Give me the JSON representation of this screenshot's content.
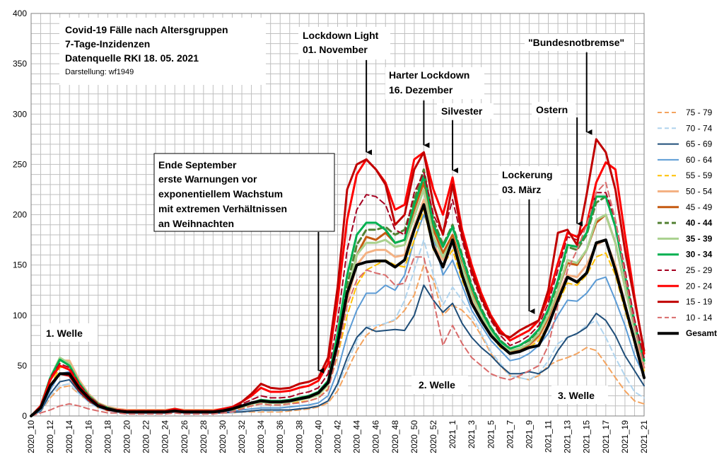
{
  "chart_data": {
    "type": "line",
    "title_lines": [
      "Covid-19  Fälle nach Altersgruppen",
      "7-Tage-Inzidenzen",
      "Datenquelle RKI 18. 05. 2021"
    ],
    "subtitle": "Darstellung:  wf1949",
    "ylim": [
      0,
      400
    ],
    "yticks": [
      0,
      50,
      100,
      150,
      200,
      250,
      300,
      350,
      400
    ],
    "weeks": [
      "2020_10",
      "2020_11",
      "2020_12",
      "2020_13",
      "2020_14",
      "2020_15",
      "2020_16",
      "2020_17",
      "2020_18",
      "2020_19",
      "2020_20",
      "2020_21",
      "2020_22",
      "2020_23",
      "2020_24",
      "2020_25",
      "2020_26",
      "2020_27",
      "2020_28",
      "2020_29",
      "2020_30",
      "2020_31",
      "2020_32",
      "2020_33",
      "2020_34",
      "2020_35",
      "2020_36",
      "2020_37",
      "2020_38",
      "2020_39",
      "2020_40",
      "2020_41",
      "2020_42",
      "2020_43",
      "2020_44",
      "2020_45",
      "2020_46",
      "2020_47",
      "2020_48",
      "2020_49",
      "2020_50",
      "2020_51",
      "2020_52",
      "2020_53",
      "2021_1",
      "2021_2",
      "2021_3",
      "2021_4",
      "2021_5",
      "2021_6",
      "2021_7",
      "2021_8",
      "2021_9",
      "2021_10",
      "2021_11",
      "2021_12",
      "2021_13",
      "2021_14",
      "2021_15",
      "2021_16",
      "2021_17",
      "2021_18",
      "2021_19",
      "2021_20",
      "2021_21"
    ],
    "xtick_labels": [
      "2020_10",
      "2020_12",
      "2020_14",
      "2020_16",
      "2020_18",
      "2020_20",
      "2020_22",
      "2020_24",
      "2020_26",
      "2020_28",
      "2020_30",
      "2020_32",
      "2020_34",
      "2020_36",
      "2020_38",
      "2020_40",
      "2020_42",
      "2020_44",
      "2020_46",
      "2020_48",
      "2020_50",
      "2020_52",
      "2021_1",
      "2021_3",
      "2021_5",
      "2021_7",
      "2021_9",
      "2021_11",
      "2021_13",
      "2021_15",
      "2021_17",
      "2021_19",
      "2021_21"
    ],
    "series": [
      {
        "name": "75 - 79",
        "color": "#f4a460",
        "dash": "dash",
        "width": 2,
        "values": [
          0,
          4,
          18,
          28,
          30,
          22,
          14,
          8,
          5,
          4,
          3,
          3,
          3,
          3,
          3,
          4,
          3,
          3,
          3,
          3,
          3,
          3,
          4,
          4,
          4,
          4,
          4,
          5,
          6,
          7,
          9,
          13,
          25,
          45,
          65,
          80,
          88,
          92,
          95,
          105,
          120,
          150,
          135,
          100,
          110,
          105,
          95,
          80,
          62,
          50,
          40,
          38,
          36,
          40,
          50,
          55,
          58,
          62,
          68,
          65,
          52,
          38,
          25,
          15,
          12
        ]
      },
      {
        "name": "70 - 74",
        "color": "#b0d4ee",
        "dash": "dash",
        "width": 2,
        "values": [
          0,
          4,
          20,
          30,
          32,
          22,
          14,
          8,
          5,
          4,
          3,
          3,
          3,
          3,
          3,
          4,
          3,
          3,
          3,
          3,
          3,
          3,
          4,
          5,
          5,
          5,
          5,
          6,
          7,
          8,
          10,
          15,
          30,
          52,
          75,
          88,
          90,
          92,
          96,
          115,
          145,
          175,
          140,
          110,
          128,
          115,
          100,
          82,
          64,
          52,
          40,
          38,
          36,
          42,
          55,
          72,
          78,
          82,
          90,
          95,
          78,
          58,
          40,
          24,
          18
        ]
      },
      {
        "name": "65 - 69",
        "color": "#1f4e79",
        "dash": "solid",
        "width": 2,
        "values": [
          0,
          5,
          22,
          34,
          36,
          24,
          15,
          9,
          6,
          4,
          3,
          3,
          3,
          3,
          3,
          4,
          3,
          3,
          3,
          3,
          3,
          4,
          4,
          5,
          6,
          6,
          6,
          6,
          7,
          8,
          10,
          15,
          32,
          58,
          78,
          88,
          84,
          85,
          86,
          85,
          100,
          130,
          115,
          103,
          112,
          92,
          78,
          68,
          60,
          50,
          42,
          42,
          44,
          42,
          48,
          65,
          78,
          82,
          88,
          102,
          95,
          80,
          60,
          45,
          30
        ]
      },
      {
        "name": "60 - 64",
        "color": "#5b9bd5",
        "dash": "solid",
        "width": 2,
        "values": [
          0,
          6,
          26,
          42,
          44,
          30,
          18,
          10,
          7,
          5,
          4,
          4,
          4,
          4,
          4,
          5,
          4,
          4,
          4,
          4,
          5,
          5,
          6,
          7,
          8,
          8,
          8,
          9,
          10,
          11,
          13,
          20,
          45,
          80,
          105,
          122,
          122,
          130,
          125,
          140,
          175,
          200,
          178,
          140,
          155,
          130,
          105,
          90,
          75,
          65,
          55,
          57,
          62,
          70,
          82,
          100,
          115,
          114,
          122,
          135,
          138,
          115,
          90,
          60,
          40
        ]
      },
      {
        "name": "55 - 59",
        "color": "#ffc000",
        "dash": "dash",
        "width": 2,
        "values": [
          0,
          7,
          30,
          48,
          50,
          33,
          20,
          11,
          8,
          6,
          5,
          5,
          5,
          5,
          5,
          6,
          5,
          5,
          5,
          5,
          6,
          6,
          8,
          10,
          12,
          11,
          11,
          12,
          14,
          15,
          18,
          27,
          60,
          100,
          130,
          145,
          150,
          155,
          150,
          148,
          175,
          205,
          165,
          150,
          165,
          135,
          112,
          95,
          80,
          68,
          62,
          64,
          68,
          75,
          90,
          112,
          132,
          130,
          140,
          158,
          162,
          140,
          105,
          72,
          45
        ]
      },
      {
        "name": "50 - 54",
        "color": "#f4b183",
        "dash": "solid",
        "width": 3,
        "values": [
          0,
          9,
          35,
          55,
          55,
          36,
          22,
          13,
          9,
          7,
          6,
          6,
          6,
          6,
          6,
          7,
          6,
          6,
          6,
          6,
          7,
          8,
          10,
          13,
          15,
          14,
          14,
          15,
          17,
          18,
          22,
          32,
          70,
          115,
          150,
          162,
          165,
          165,
          158,
          160,
          188,
          215,
          170,
          155,
          172,
          140,
          115,
          97,
          82,
          70,
          63,
          65,
          70,
          78,
          95,
          120,
          140,
          138,
          150,
          170,
          175,
          150,
          112,
          76,
          48
        ]
      },
      {
        "name": "45 - 49",
        "color": "#c55a11",
        "dash": "solid",
        "width": 3,
        "values": [
          0,
          9,
          36,
          56,
          52,
          34,
          21,
          12,
          8,
          6,
          5,
          5,
          5,
          5,
          5,
          7,
          5,
          5,
          5,
          5,
          6,
          7,
          9,
          12,
          14,
          13,
          13,
          14,
          16,
          18,
          21,
          31,
          72,
          120,
          160,
          178,
          175,
          182,
          172,
          175,
          205,
          232,
          185,
          162,
          180,
          150,
          122,
          102,
          85,
          72,
          64,
          66,
          71,
          80,
          98,
          125,
          152,
          150,
          165,
          192,
          200,
          172,
          128,
          86,
          52
        ]
      },
      {
        "name": "40 - 44",
        "color": "#548235",
        "dash": "dash",
        "width": 3,
        "values": [
          0,
          9,
          36,
          56,
          50,
          33,
          21,
          12,
          8,
          6,
          5,
          5,
          5,
          5,
          5,
          7,
          5,
          5,
          5,
          5,
          6,
          7,
          10,
          13,
          15,
          14,
          14,
          15,
          17,
          19,
          22,
          33,
          78,
          130,
          170,
          185,
          185,
          188,
          180,
          185,
          215,
          245,
          195,
          170,
          190,
          160,
          130,
          107,
          88,
          75,
          67,
          70,
          75,
          85,
          105,
          132,
          168,
          165,
          180,
          212,
          218,
          188,
          140,
          92,
          55
        ]
      },
      {
        "name": "35 - 39",
        "color": "#a9d18e",
        "dash": "solid",
        "width": 3,
        "values": [
          0,
          10,
          38,
          58,
          52,
          34,
          21,
          12,
          8,
          6,
          5,
          5,
          5,
          5,
          5,
          7,
          5,
          5,
          5,
          5,
          6,
          7,
          9,
          12,
          14,
          13,
          13,
          14,
          16,
          18,
          21,
          31,
          72,
          122,
          160,
          172,
          172,
          175,
          168,
          170,
          198,
          225,
          178,
          158,
          175,
          148,
          120,
          100,
          84,
          72,
          65,
          67,
          72,
          82,
          100,
          125,
          155,
          152,
          165,
          195,
          200,
          172,
          128,
          86,
          52
        ]
      },
      {
        "name": "30 - 34",
        "color": "#00b050",
        "dash": "solid",
        "width": 3,
        "values": [
          0,
          10,
          38,
          56,
          50,
          33,
          20,
          12,
          8,
          6,
          5,
          5,
          5,
          5,
          5,
          7,
          5,
          5,
          5,
          5,
          6,
          7,
          10,
          13,
          16,
          15,
          15,
          16,
          18,
          20,
          24,
          35,
          82,
          140,
          180,
          192,
          192,
          185,
          172,
          175,
          210,
          238,
          190,
          168,
          188,
          158,
          128,
          105,
          87,
          74,
          67,
          70,
          76,
          86,
          106,
          135,
          170,
          168,
          182,
          218,
          218,
          188,
          140,
          92,
          55
        ]
      },
      {
        "name": "25 - 29",
        "color": "#a50021",
        "dash": "dash",
        "width": 2,
        "values": [
          0,
          10,
          38,
          52,
          48,
          32,
          20,
          12,
          8,
          6,
          5,
          5,
          5,
          5,
          5,
          7,
          5,
          5,
          5,
          5,
          6,
          8,
          12,
          16,
          20,
          18,
          18,
          19,
          22,
          24,
          28,
          42,
          95,
          165,
          205,
          220,
          218,
          210,
          185,
          180,
          222,
          242,
          200,
          180,
          215,
          175,
          140,
          115,
          95,
          80,
          70,
          74,
          80,
          90,
          112,
          145,
          178,
          175,
          190,
          222,
          222,
          195,
          145,
          96,
          58
        ]
      },
      {
        "name": "20 - 24",
        "color": "#ff0000",
        "dash": "solid",
        "width": 3,
        "values": [
          0,
          10,
          36,
          50,
          46,
          30,
          19,
          11,
          7,
          6,
          5,
          5,
          5,
          5,
          5,
          7,
          5,
          5,
          5,
          5,
          7,
          9,
          14,
          20,
          28,
          24,
          24,
          25,
          28,
          30,
          35,
          52,
          115,
          195,
          240,
          255,
          245,
          232,
          205,
          210,
          255,
          262,
          225,
          200,
          237,
          185,
          150,
          122,
          100,
          85,
          75,
          80,
          85,
          95,
          118,
          152,
          182,
          178,
          190,
          232,
          252,
          245,
          180,
          118,
          62
        ]
      },
      {
        "name": "15 - 19",
        "color": "#c00000",
        "dash": "solid",
        "width": 3,
        "values": [
          0,
          8,
          30,
          42,
          40,
          26,
          16,
          10,
          6,
          5,
          4,
          4,
          4,
          4,
          4,
          5,
          4,
          4,
          4,
          4,
          6,
          8,
          14,
          22,
          32,
          28,
          27,
          28,
          32,
          34,
          38,
          58,
          128,
          225,
          250,
          255,
          245,
          230,
          190,
          200,
          245,
          262,
          210,
          180,
          230,
          180,
          145,
          118,
          98,
          82,
          78,
          85,
          90,
          95,
          125,
          182,
          185,
          170,
          220,
          275,
          262,
          225,
          165,
          115,
          65
        ]
      },
      {
        "name": "10 - 14",
        "color": "#d96c6c",
        "dash": "dash",
        "width": 2,
        "values": [
          0,
          3,
          6,
          10,
          12,
          10,
          7,
          5,
          3,
          3,
          2,
          2,
          2,
          2,
          2,
          3,
          2,
          2,
          2,
          2,
          3,
          4,
          7,
          10,
          12,
          11,
          11,
          12,
          13,
          15,
          18,
          26,
          62,
          110,
          135,
          145,
          142,
          140,
          130,
          132,
          158,
          158,
          115,
          70,
          90,
          72,
          58,
          50,
          42,
          38,
          36,
          40,
          45,
          50,
          70,
          110,
          145,
          165,
          190,
          222,
          232,
          195,
          140,
          90,
          48
        ]
      },
      {
        "name": "Gesamt",
        "color": "#000000",
        "dash": "solid",
        "width": 4,
        "values": [
          0,
          8,
          30,
          42,
          42,
          28,
          18,
          10,
          7,
          5,
          4,
          4,
          4,
          4,
          4,
          5,
          4,
          4,
          4,
          4,
          5,
          7,
          10,
          13,
          15,
          14,
          14,
          15,
          17,
          19,
          23,
          33,
          72,
          122,
          150,
          153,
          154,
          154,
          148,
          155,
          185,
          210,
          168,
          148,
          175,
          140,
          112,
          95,
          80,
          70,
          62,
          64,
          68,
          70,
          90,
          115,
          138,
          133,
          142,
          172,
          175,
          145,
          110,
          75,
          38
        ]
      }
    ],
    "legend_placement": "right",
    "grid": true,
    "annotations": [
      {
        "id": "lockdown-light",
        "lines": [
          "Lockdown Light",
          "01. November"
        ],
        "week": "2020_45"
      },
      {
        "id": "harter-lockdown",
        "lines": [
          "Harter Lockdown",
          "16.  Dezember"
        ],
        "week": "2020_51"
      },
      {
        "id": "silvester",
        "lines": [
          "Silvester"
        ],
        "week": "2021_1"
      },
      {
        "id": "ostern",
        "lines": [
          "Ostern"
        ],
        "week": "2021_14"
      },
      {
        "id": "bundesnotbremse",
        "lines": [
          "\"Bundesnotbremse\""
        ],
        "week": "2021_15"
      },
      {
        "id": "lockerung",
        "lines": [
          "Lockerung",
          "03. März"
        ],
        "week": "2021_9"
      },
      {
        "id": "ende-september",
        "lines": [
          "Ende September",
          "erste Warnungen vor",
          "exponentiellem Wachstum",
          "mit extremen Verhältnissen",
          "an Weihnachten"
        ],
        "week": "2020_40"
      }
    ],
    "wave_labels": [
      "1. Welle",
      "2. Welle",
      "3. Welle"
    ]
  }
}
